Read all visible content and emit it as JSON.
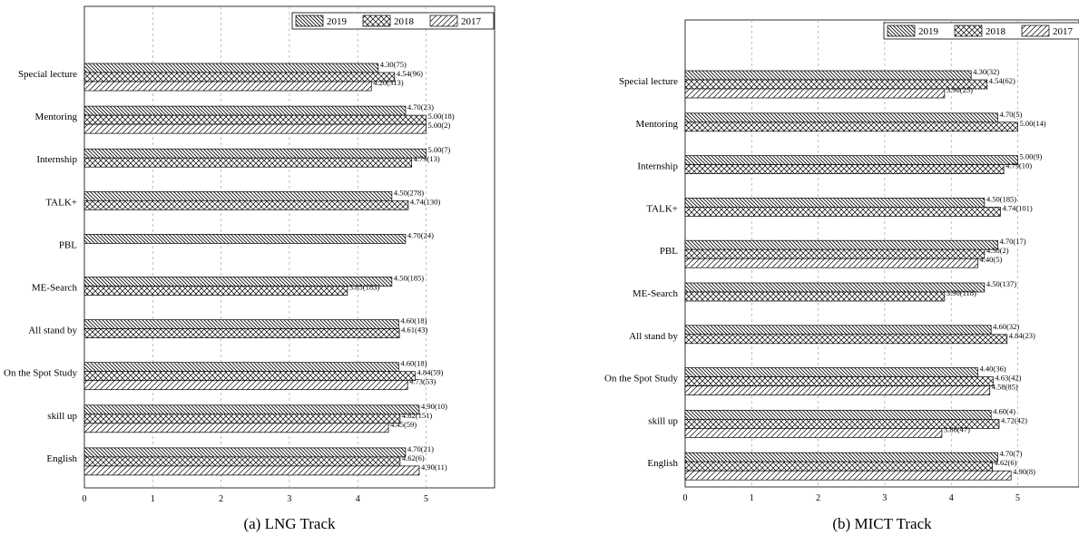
{
  "chart_data": [
    {
      "type": "bar",
      "caption": "(a)  LNG  Track",
      "categories": [
        "Special lecture",
        "Mentoring",
        "Internship",
        "TALK+",
        "PBL",
        "ME-Search",
        "All stand by",
        "On the Spot Study",
        "skill up",
        "English"
      ],
      "xlim": [
        0,
        6
      ],
      "x_ticks": [
        "0",
        "1",
        "2",
        "3",
        "4",
        "5"
      ],
      "grid": "vertical dashed",
      "legend_placement": "top-right",
      "series": [
        {
          "name": "2019",
          "pattern": "diagonal-hatch",
          "values": [
            4.3,
            4.7,
            5.0,
            4.5,
            4.7,
            4.5,
            4.6,
            4.6,
            4.9,
            4.7
          ],
          "labels": [
            "4.30(75)",
            "4.70(23)",
            "5.00(7)",
            "4.50(278)",
            "4.70(24)",
            "4.50(185)",
            "4.60(18)",
            "4.60(18)",
            "4.90(10)",
            "4.70(21)"
          ]
        },
        {
          "name": "2018",
          "pattern": "cross-hatch",
          "values": [
            4.54,
            5.0,
            4.79,
            4.74,
            null,
            3.85,
            4.61,
            4.84,
            4.62,
            4.62
          ],
          "labels": [
            "4.54(96)",
            "5.00(18)",
            "4.79(13)",
            "4.74(130)",
            null,
            "3.85(183)",
            "4.61(43)",
            "4.84(59)",
            "4.62(151)",
            "4.62(6)"
          ]
        },
        {
          "name": "2017",
          "pattern": "forward-hatch",
          "values": [
            4.2,
            5.0,
            null,
            null,
            null,
            null,
            null,
            4.73,
            4.45,
            4.9
          ],
          "labels": [
            "4.20(313)",
            "5.00(2)",
            null,
            null,
            null,
            null,
            null,
            "4.73(53)",
            "4.45(59)",
            "4.90(11)"
          ]
        }
      ]
    },
    {
      "type": "bar",
      "caption": "(b)  MICT  Track",
      "categories": [
        "Special lecture",
        "Mentoring",
        "Internship",
        "TALK+",
        "PBL",
        "ME-Search",
        "All stand by",
        "On the Spot Study",
        "skill up",
        "English"
      ],
      "xlim": [
        0,
        6
      ],
      "x_ticks": [
        "0",
        "1",
        "2",
        "3",
        "4",
        "5"
      ],
      "grid": "vertical dashed",
      "legend_placement": "top-right",
      "series": [
        {
          "name": "2019",
          "pattern": "diagonal-hatch",
          "values": [
            4.3,
            4.7,
            5.0,
            4.5,
            4.7,
            4.5,
            4.6,
            4.4,
            4.6,
            4.7
          ],
          "labels": [
            "4.30(32)",
            "4.70(5)",
            "5.00(9)",
            "4.50(185)",
            "4.70(17)",
            "4.50(137)",
            "4.60(32)",
            "4.40(36)",
            "4.60(4)",
            "4.70(7)"
          ]
        },
        {
          "name": "2018",
          "pattern": "cross-hatch",
          "values": [
            4.54,
            5.0,
            4.79,
            4.74,
            4.5,
            3.9,
            4.84,
            4.63,
            4.72,
            4.62
          ],
          "labels": [
            "4.54(62)",
            "5.00(14)",
            "4.79(10)",
            "4.74(101)",
            "4.50(2)",
            "3.90(118)",
            "4.84(23)",
            "4.63(42)",
            "4.72(42)",
            "4.62(6)"
          ]
        },
        {
          "name": "2017",
          "pattern": "forward-hatch",
          "values": [
            3.9,
            null,
            null,
            null,
            4.4,
            null,
            null,
            4.58,
            3.86,
            4.9
          ],
          "labels": [
            "3.90(25)",
            null,
            null,
            null,
            "4.40(5)",
            null,
            null,
            "4.58(85)",
            "3.86(47)",
            "4.90(8)"
          ]
        }
      ]
    }
  ]
}
